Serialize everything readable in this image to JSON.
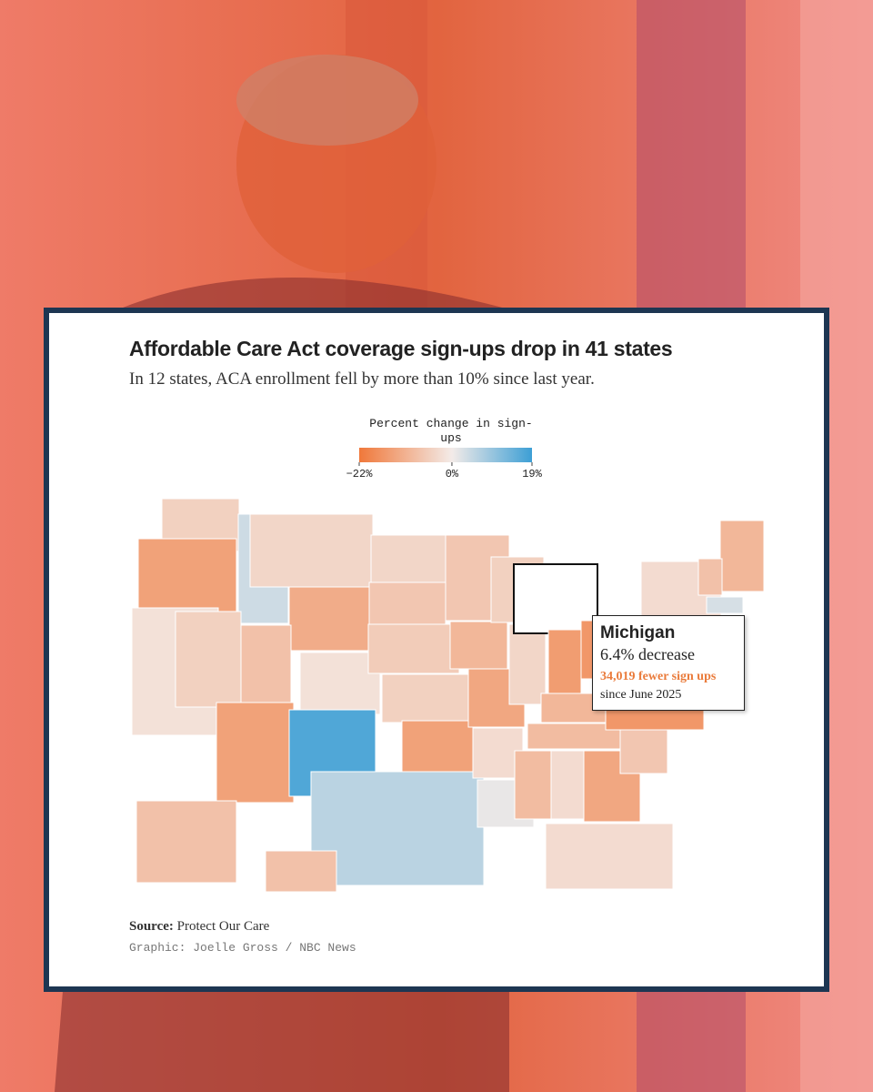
{
  "chart_data": {
    "type": "map",
    "title": "Affordable Care Act coverage sign-ups drop in 41 states",
    "subtitle": "In 12 states, ACA enrollment fell by more than 10% since last year.",
    "legend_title": "Percent change in sign-ups",
    "colorscale": {
      "colors": [
        "#f0783a",
        "#f3ebe8",
        "#3d9fd5"
      ],
      "lim": [
        -22,
        19
      ],
      "ticks": [
        {
          "value": -22,
          "label": "−22%"
        },
        {
          "value": 0,
          "label": "0%"
        },
        {
          "value": 19,
          "label": "19%"
        }
      ]
    },
    "values": [
      -5,
      -14,
      -2,
      4,
      -5,
      -4,
      -12,
      -8,
      -14,
      -2,
      17,
      -4,
      -7,
      -6,
      -5,
      -14,
      6,
      -7,
      -10,
      -13,
      -3,
      1,
      -5,
      -4,
      -6.4,
      -15,
      -16,
      -10,
      -9,
      -9,
      -3,
      -13,
      -3,
      -7,
      -16,
      -8,
      -6,
      -4,
      -3,
      -10,
      -8,
      3,
      -8,
      -8
    ],
    "highlight": {
      "index": 24,
      "name": "Michigan",
      "change": "6.4% decrease",
      "count": "34,019 fewer sign ups",
      "since": "since June 2025"
    },
    "source_label": "Source:",
    "source": "Protect Our Care",
    "credit": "Graphic: Joelle Gross / NBC News"
  }
}
